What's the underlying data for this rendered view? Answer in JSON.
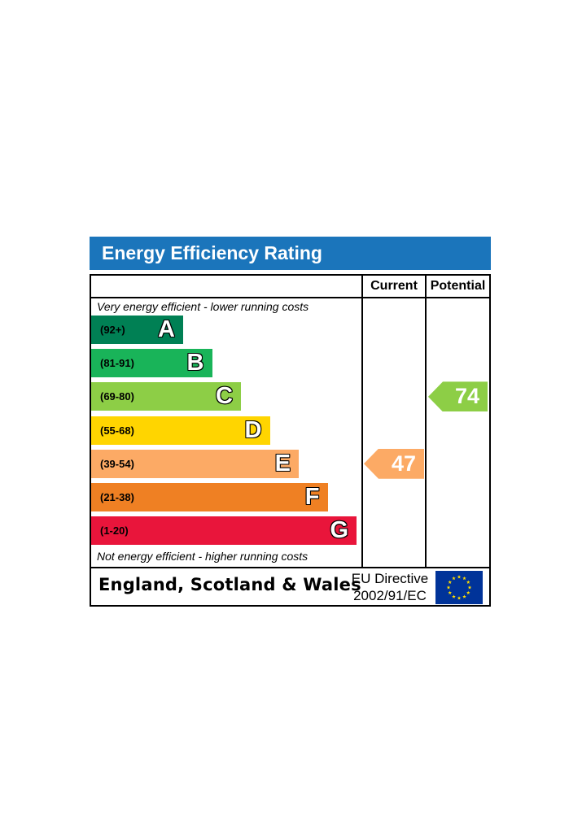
{
  "title": "Energy Efficiency Rating",
  "columns": {
    "current": "Current",
    "potential": "Potential"
  },
  "top_note": "Very energy efficient - lower running costs",
  "bottom_note": "Not energy efficient - higher running costs",
  "footer": {
    "region": "England, Scotland & Wales",
    "directive_line1": "EU Directive",
    "directive_line2": "2002/91/EC"
  },
  "colors": {
    "title_bar": "#1b75bb",
    "eu_flag": "#003399",
    "eu_stars": "#ffdd00"
  },
  "chart_data": {
    "type": "bar",
    "title": "Energy Efficiency Rating",
    "bands": [
      {
        "letter": "A",
        "range": "(92+)",
        "color": "#008054"
      },
      {
        "letter": "B",
        "range": "(81-91)",
        "color": "#19b459"
      },
      {
        "letter": "C",
        "range": "(69-80)",
        "color": "#8dce46"
      },
      {
        "letter": "D",
        "range": "(55-68)",
        "color": "#ffd500"
      },
      {
        "letter": "E",
        "range": "(39-54)",
        "color": "#fcaa65"
      },
      {
        "letter": "F",
        "range": "(21-38)",
        "color": "#ef8023"
      },
      {
        "letter": "G",
        "range": "(1-20)",
        "color": "#e9153b"
      }
    ],
    "current": {
      "value": 47,
      "band": "E",
      "color": "#fcaa65"
    },
    "potential": {
      "value": 74,
      "band": "C",
      "color": "#8dce46"
    }
  }
}
